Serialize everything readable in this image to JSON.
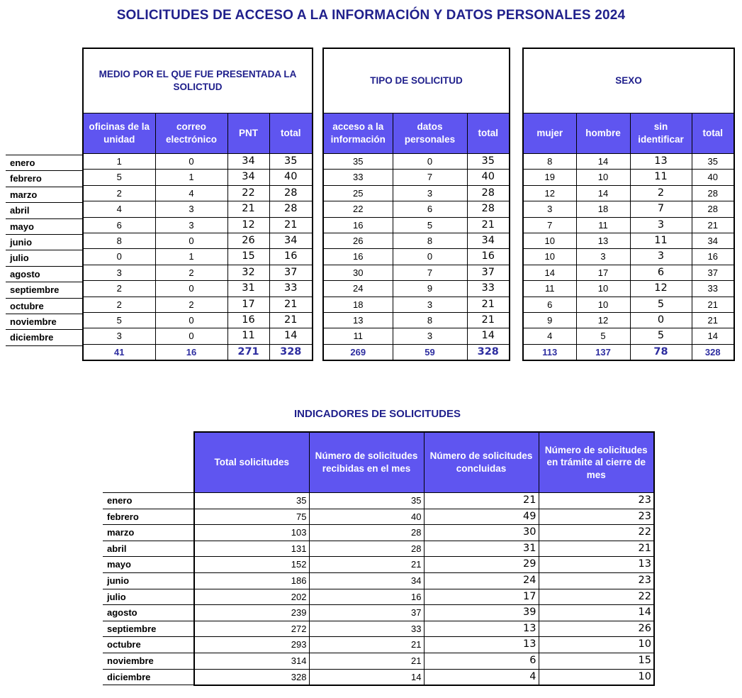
{
  "page_title": "SOLICITUDES DE ACCESO A LA INFORMACIÓN Y DATOS PERSONALES 2024",
  "months": [
    "enero",
    "febrero",
    "marzo",
    "abril",
    "mayo",
    "junio",
    "julio",
    "agosto",
    "septiembre",
    "octubre",
    "noviembre",
    "diciembre"
  ],
  "colors": {
    "title_text": "#20208C",
    "header_bg": "#5F55F0",
    "header_text": "#FFFFFF",
    "totals_text": "#2D2DA0",
    "border": "#000000"
  },
  "top_tables": [
    {
      "title": "MEDIO POR EL QUE FUE PRESENTADA LA SOLICTUD",
      "columns": [
        "oficinas de la unidad",
        "correo electrónico",
        "PNT",
        "total"
      ],
      "rows": [
        [
          1,
          0,
          34,
          35
        ],
        [
          5,
          1,
          34,
          40
        ],
        [
          2,
          4,
          22,
          28
        ],
        [
          4,
          3,
          21,
          28
        ],
        [
          6,
          3,
          12,
          21
        ],
        [
          8,
          0,
          26,
          34
        ],
        [
          0,
          1,
          15,
          16
        ],
        [
          3,
          2,
          32,
          37
        ],
        [
          2,
          0,
          31,
          33
        ],
        [
          2,
          2,
          17,
          21
        ],
        [
          5,
          0,
          16,
          21
        ],
        [
          3,
          0,
          11,
          14
        ]
      ],
      "totals": [
        41,
        16,
        271,
        328
      ]
    },
    {
      "title": "TIPO DE SOLICITUD",
      "columns": [
        "acceso a la información",
        "datos personales",
        "total"
      ],
      "rows": [
        [
          35,
          0,
          35
        ],
        [
          33,
          7,
          40
        ],
        [
          25,
          3,
          28
        ],
        [
          22,
          6,
          28
        ],
        [
          16,
          5,
          21
        ],
        [
          26,
          8,
          34
        ],
        [
          16,
          0,
          16
        ],
        [
          30,
          7,
          37
        ],
        [
          24,
          9,
          33
        ],
        [
          18,
          3,
          21
        ],
        [
          13,
          8,
          21
        ],
        [
          11,
          3,
          14
        ]
      ],
      "totals": [
        269,
        59,
        328
      ]
    },
    {
      "title": "SEXO",
      "columns": [
        "mujer",
        "hombre",
        "sin identificar",
        "total"
      ],
      "rows": [
        [
          8,
          14,
          13,
          35
        ],
        [
          19,
          10,
          11,
          40
        ],
        [
          12,
          14,
          2,
          28
        ],
        [
          3,
          18,
          7,
          28
        ],
        [
          7,
          11,
          3,
          21
        ],
        [
          10,
          13,
          11,
          34
        ],
        [
          10,
          3,
          3,
          16
        ],
        [
          14,
          17,
          6,
          37
        ],
        [
          11,
          10,
          12,
          33
        ],
        [
          6,
          10,
          5,
          21
        ],
        [
          9,
          12,
          0,
          21
        ],
        [
          4,
          5,
          5,
          14
        ]
      ],
      "totals": [
        113,
        137,
        78,
        328
      ]
    }
  ],
  "indicators": {
    "title": "INDICADORES DE SOLICITUDES",
    "columns": [
      "Total solicitudes",
      "Número de solicitudes recibidas en el mes",
      "Número de solicitudes concluidas",
      "Número de solicitudes en trámite al cierre de mes"
    ],
    "rows": [
      [
        35,
        35,
        21,
        23
      ],
      [
        75,
        40,
        49,
        23
      ],
      [
        103,
        28,
        30,
        22
      ],
      [
        131,
        28,
        31,
        21
      ],
      [
        152,
        21,
        29,
        13
      ],
      [
        186,
        34,
        24,
        23
      ],
      [
        202,
        16,
        17,
        22
      ],
      [
        239,
        37,
        39,
        14
      ],
      [
        272,
        33,
        13,
        26
      ],
      [
        293,
        21,
        13,
        10
      ],
      [
        314,
        21,
        6,
        15
      ],
      [
        328,
        14,
        4,
        10
      ]
    ]
  }
}
